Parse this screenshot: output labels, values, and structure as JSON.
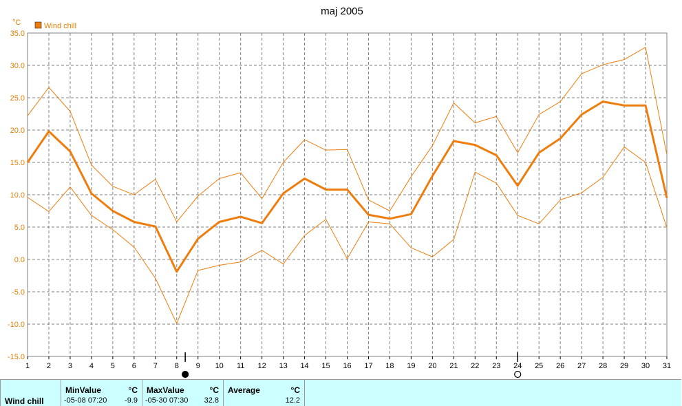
{
  "chart_data": {
    "type": "line",
    "title": "maj 2005",
    "ylabel": "°C",
    "xlabel": "",
    "ylim": [
      -15,
      35
    ],
    "yticks": [
      "35.0",
      "30.0",
      "25.0",
      "20.0",
      "15.0",
      "10.0",
      "5.0",
      "0.0",
      "-5.0",
      "-10.0",
      "-15.0"
    ],
    "x": [
      1,
      2,
      3,
      4,
      5,
      6,
      7,
      8,
      9,
      10,
      11,
      12,
      13,
      14,
      15,
      16,
      17,
      18,
      19,
      20,
      21,
      22,
      23,
      24,
      25,
      26,
      27,
      28,
      29,
      30,
      31
    ],
    "grid": true,
    "legend": "top-left",
    "series": [
      {
        "name": "Wind chill",
        "role": "average",
        "values": [
          15.0,
          19.8,
          16.7,
          10.2,
          7.5,
          5.8,
          5.1,
          -1.9,
          3.2,
          5.8,
          6.6,
          5.6,
          10.2,
          12.5,
          10.8,
          10.8,
          6.9,
          6.3,
          7.0,
          12.9,
          18.3,
          17.7,
          16.1,
          11.4,
          16.5,
          18.7,
          22.4,
          24.4,
          23.8,
          23.8,
          9.5
        ]
      },
      {
        "name": "",
        "role": "max",
        "values": [
          22.2,
          26.6,
          22.9,
          14.6,
          11.3,
          10.0,
          12.4,
          5.8,
          9.8,
          12.5,
          13.4,
          9.4,
          15.0,
          18.5,
          16.9,
          17.0,
          9.2,
          7.5,
          12.8,
          17.6,
          24.2,
          21.1,
          22.1,
          16.5,
          22.4,
          24.4,
          28.7,
          30.1,
          30.9,
          32.8,
          16.2
        ]
      },
      {
        "name": "",
        "role": "min",
        "values": [
          9.6,
          7.4,
          11.2,
          6.8,
          4.6,
          1.9,
          -2.9,
          -9.9,
          -1.7,
          -0.9,
          -0.4,
          1.4,
          -0.7,
          3.7,
          6.2,
          0.1,
          5.8,
          5.5,
          1.8,
          0.4,
          3.1,
          13.5,
          11.8,
          6.8,
          5.5,
          9.2,
          10.3,
          12.7,
          17.4,
          15.0,
          4.9
        ]
      }
    ],
    "markers": [
      {
        "x": 8.4,
        "type": "filled-circle"
      },
      {
        "x": 24.0,
        "type": "open-circle"
      }
    ],
    "colors": {
      "line": "#ee7d0e",
      "grid": "#7f7f7f",
      "axis_text": "#e67e00"
    }
  },
  "legend": {
    "label": "Wind chill",
    "unit": "°C"
  },
  "stats": {
    "series_label": "Wind chill",
    "min": {
      "label": "MinValue",
      "unit": "°C",
      "time": "-05-08  07:20",
      "value": "-9.9"
    },
    "max": {
      "label": "MaxValue",
      "unit": "°C",
      "time": "-05-30  07:30",
      "value": "32.8"
    },
    "avg": {
      "label": "Average",
      "unit": "°C",
      "value": "12.2"
    }
  }
}
